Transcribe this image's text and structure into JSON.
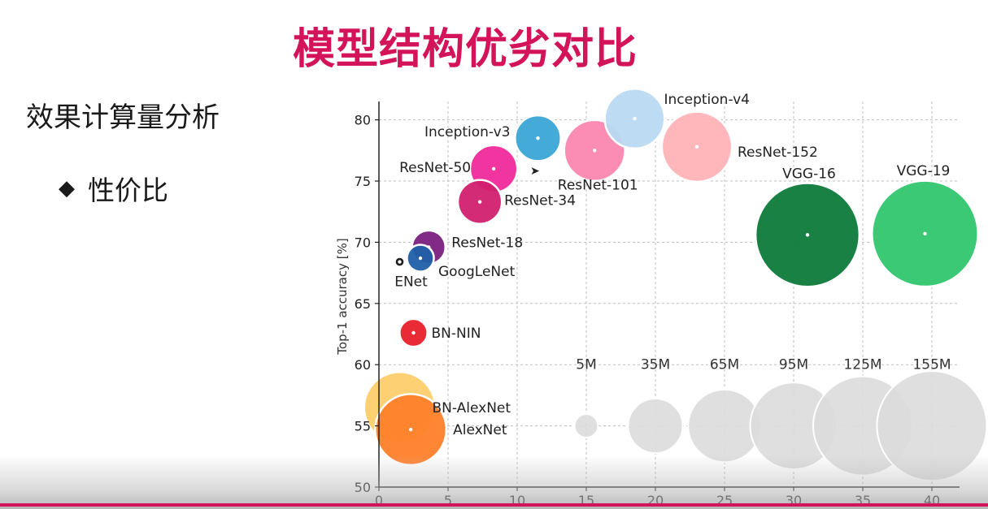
{
  "slide": {
    "title": "模型结构优劣对比",
    "subtitle": "效果计算量分析",
    "bullet_symbol": "◆",
    "bullet": "性价比",
    "accent_color": "#d4145a"
  },
  "chart_data": {
    "type": "scatter",
    "ylabel": "Top-1 accuracy [%]",
    "xlim": [
      0,
      42
    ],
    "ylim": [
      50,
      81.5
    ],
    "xticks": [
      0,
      5,
      10,
      15,
      20,
      25,
      30,
      35,
      40
    ],
    "yticks": [
      50,
      55,
      60,
      65,
      70,
      75,
      80
    ],
    "grid": true,
    "points": [
      {
        "name": "BN-AlexNet",
        "x": 1.5,
        "y": 56.5,
        "params_m": 62,
        "color": "#fdcf6b",
        "label_dx": 40,
        "label_dy": 6,
        "anchor": "start"
      },
      {
        "name": "AlexNet",
        "x": 2.3,
        "y": 54.7,
        "params_m": 62,
        "color": "#ff7f2a",
        "label_dx": 52,
        "label_dy": 6,
        "anchor": "start"
      },
      {
        "name": "ENet",
        "x": 1.5,
        "y": 68.4,
        "params_m": 0.4,
        "color": "#111111",
        "label_dx": 14,
        "label_dy": 30,
        "anchor": "middle"
      },
      {
        "name": "GoogLeNet",
        "x": 3.0,
        "y": 68.7,
        "params_m": 7,
        "color": "#1f5fa8",
        "label_dx": 22,
        "label_dy": 22,
        "anchor": "start"
      },
      {
        "name": "ResNet-18",
        "x": 3.6,
        "y": 69.6,
        "params_m": 11.7,
        "color": "#7a1f80",
        "label_dx": 28,
        "label_dy": 0,
        "anchor": "start"
      },
      {
        "name": "BN-NIN",
        "x": 2.5,
        "y": 62.6,
        "params_m": 7.6,
        "color": "#e8202a",
        "label_dx": 22,
        "label_dy": 6,
        "anchor": "start"
      },
      {
        "name": "ResNet-34",
        "x": 7.3,
        "y": 73.3,
        "params_m": 21.8,
        "color": "#d1206f",
        "label_dx": 30,
        "label_dy": 4,
        "anchor": "start"
      },
      {
        "name": "ResNet-50",
        "x": 8.3,
        "y": 76.0,
        "params_m": 25.6,
        "color": "#f02a9b",
        "label_dx": -28,
        "label_dy": 4,
        "anchor": "end"
      },
      {
        "name": "Inception-v3",
        "x": 11.5,
        "y": 78.5,
        "params_m": 23.8,
        "color": "#3aa5d6",
        "label_dx": -34,
        "label_dy": -2,
        "anchor": "end"
      },
      {
        "name": "ResNet-101",
        "x": 15.6,
        "y": 77.5,
        "params_m": 44.5,
        "color": "#fb87b0",
        "label_dx": 4,
        "label_dy": 48,
        "anchor": "middle"
      },
      {
        "name": "Inception-v4",
        "x": 18.5,
        "y": 80.1,
        "params_m": 42.7,
        "color": "#b9daf3",
        "label_dx": 36,
        "label_dy": -18,
        "anchor": "start"
      },
      {
        "name": "ResNet-152",
        "x": 23.0,
        "y": 77.8,
        "params_m": 60.2,
        "color": "#ffb3b8",
        "label_dx": 50,
        "label_dy": 12,
        "anchor": "start"
      },
      {
        "name": "VGG-16",
        "x": 31.0,
        "y": 70.6,
        "params_m": 138,
        "color": "#0e7a3a",
        "label_dx": 2,
        "label_dy": -70,
        "anchor": "middle"
      },
      {
        "name": "VGG-19",
        "x": 39.5,
        "y": 70.7,
        "params_m": 144,
        "color": "#30c66e",
        "label_dx": -2,
        "label_dy": -72,
        "anchor": "middle"
      }
    ],
    "size_legend": [
      {
        "label": "5M",
        "x": 15,
        "params_m": 5
      },
      {
        "label": "35M",
        "x": 20,
        "params_m": 35
      },
      {
        "label": "65M",
        "x": 25,
        "params_m": 65
      },
      {
        "label": "95M",
        "x": 30,
        "params_m": 95
      },
      {
        "label": "125M",
        "x": 35,
        "params_m": 125
      },
      {
        "label": "155M",
        "x": 40,
        "params_m": 155
      }
    ],
    "size_legend_y": 55,
    "size_legend_color": "#dcdcdc"
  }
}
